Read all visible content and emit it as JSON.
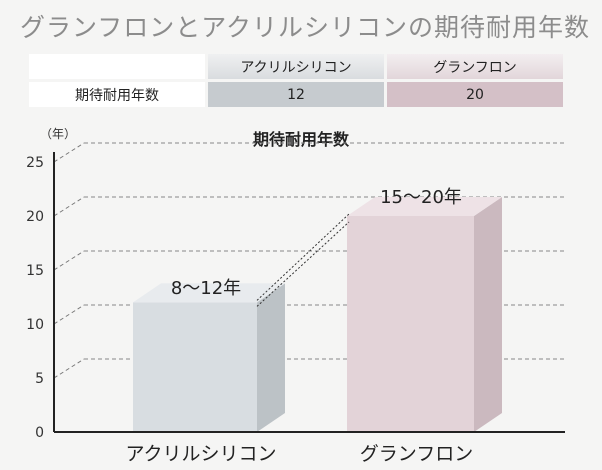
{
  "page_title": "グランフロンとアクリルシリコンの期待耐用年数",
  "comparison_table": {
    "headers": [
      "アクリルシリコン",
      "グランフロン"
    ],
    "row_label": "期待耐用年数",
    "values": [
      "12",
      "20"
    ]
  },
  "chart_data": {
    "type": "bar",
    "title": "期待耐用年数",
    "y_unit_label": "（年）",
    "ylim": [
      0,
      25
    ],
    "yticks": [
      0,
      5,
      10,
      15,
      20,
      25
    ],
    "categories": [
      "アクリルシリコン",
      "グランフロン"
    ],
    "values": [
      12,
      20
    ],
    "value_labels": [
      "8〜12年",
      "15〜20年"
    ],
    "bar_colors": [
      "#d8dde1",
      "#e3d3d8"
    ],
    "grid": true
  }
}
